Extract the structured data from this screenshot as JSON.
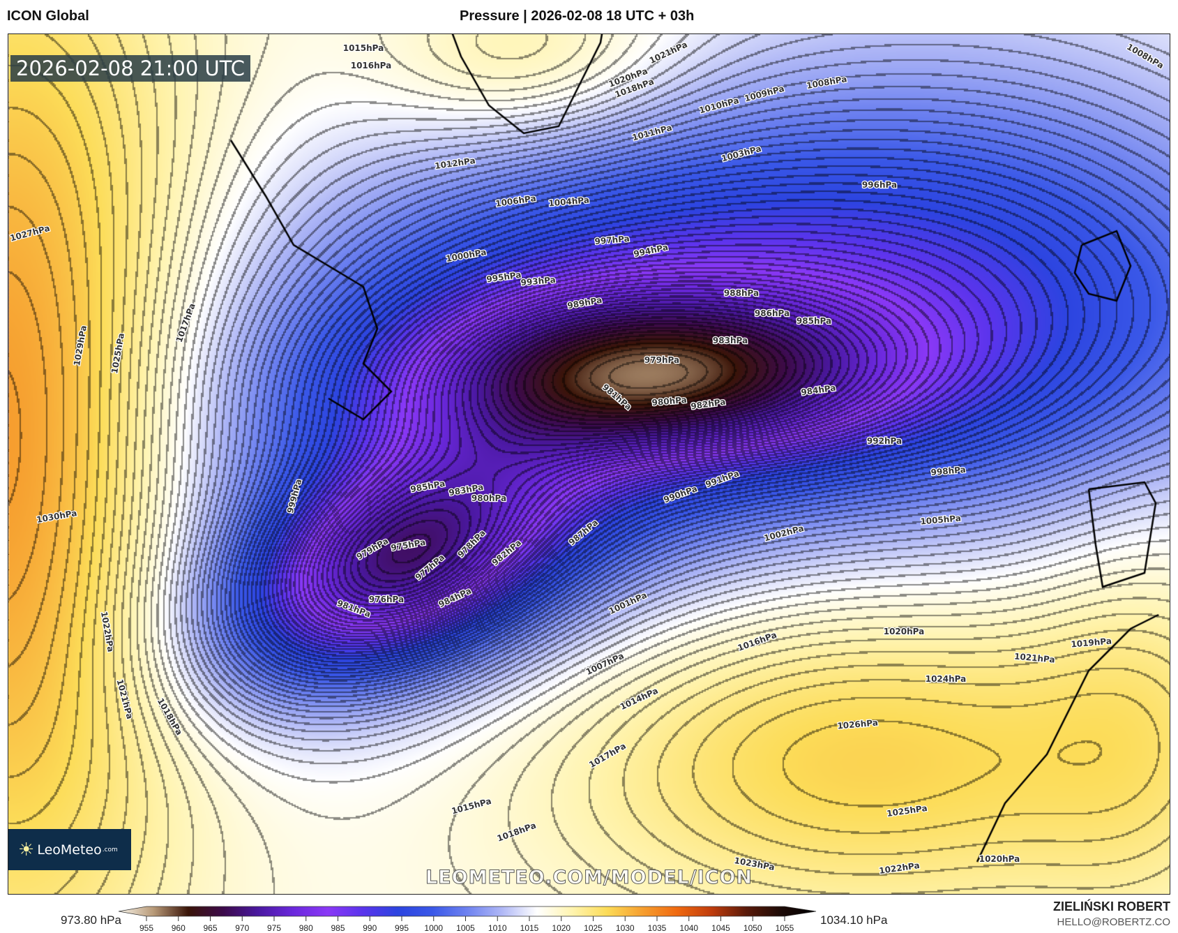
{
  "header": {
    "model": "ICON Global",
    "title": "Pressure | 2026-02-08 18 UTC + 03h"
  },
  "map": {
    "valid_time": "2026-02-08 21:00 UTC",
    "watermark": "LEOMETEO.COM/MODEL/ICON",
    "logo": {
      "name": "LeoMeteo",
      "domain": ".com",
      "icon": "sun-icon"
    },
    "isobar_labels": [
      "1015hPa",
      "1016hPa",
      "1012hPa",
      "1006hPa",
      "1004hPa",
      "1000hPa",
      "997hPa",
      "994hPa",
      "995hPa",
      "993hPa",
      "989hPa",
      "988hPa",
      "986hPa",
      "985hPa",
      "983hPa",
      "979hPa",
      "981hPa",
      "980hPa",
      "982hPa",
      "984hPa",
      "992hPa",
      "996hPa",
      "1003hPa",
      "1010hPa",
      "1009hPa",
      "1008hPa",
      "1011hPa",
      "1021hPa",
      "1018hPa",
      "1020hPa",
      "985hPa",
      "983hPa",
      "980hPa",
      "979hPa",
      "975hPa",
      "977hPa",
      "978hPa",
      "982hPa",
      "987hPa",
      "976hPa",
      "981hPa",
      "984hPa",
      "990hPa",
      "991hPa",
      "998hPa",
      "1005hPa",
      "1002hPa",
      "1001hPa",
      "1016hPa",
      "1007hPa",
      "1014hPa",
      "1017hPa",
      "1015hPa",
      "1018hPa",
      "1020hPa",
      "1019hPa",
      "1021hPa",
      "1024hPa",
      "1026hPa",
      "1025hPa",
      "1023hPa",
      "1022hPa",
      "1020hPa",
      "999hPa",
      "1017hPa",
      "1025hPa",
      "1029hPa",
      "1027hPa",
      "1030hPa",
      "1022hPa",
      "1021hPa",
      "1018hPa",
      "1008hPa"
    ]
  },
  "colorbar": {
    "min_label": "973.80 hPa",
    "max_label": "1034.10 hPa",
    "ticks": [
      "955",
      "960",
      "965",
      "970",
      "975",
      "980",
      "985",
      "990",
      "995",
      "1000",
      "1005",
      "1010",
      "1015",
      "1020",
      "1025",
      "1030",
      "1035",
      "1040",
      "1045",
      "1050",
      "1055"
    ],
    "colors": [
      "#f8f4ea",
      "#b89a78",
      "#3a1408",
      "#3c0a4a",
      "#4a18a0",
      "#6a28dc",
      "#8a38f6",
      "#5a34ec",
      "#2c44e0",
      "#3a58e8",
      "#6e82f0",
      "#b0b8f6",
      "#ffffff",
      "#fff4b0",
      "#fcdc58",
      "#f6a030",
      "#f06a10",
      "#c03c0c",
      "#5a1a0a",
      "#1c0a06",
      "#000000"
    ]
  },
  "footer": {
    "author": "ZIELIŃSKI ROBERT",
    "email": "HELLO@ROBERTZ.CO"
  }
}
